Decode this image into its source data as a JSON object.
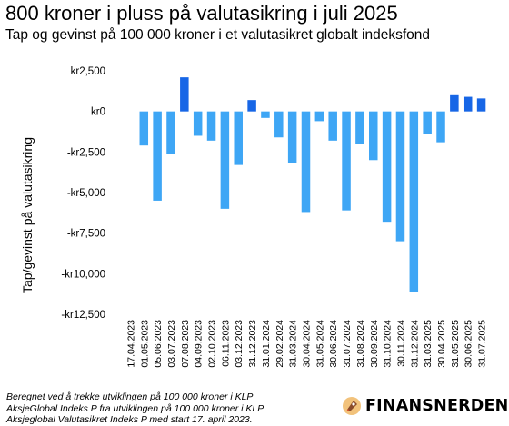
{
  "header": {
    "title": "800 kroner i pluss på valutasikring i juli 2025",
    "subtitle": "Tap og gevinst på 100 000 kroner i et valutasikret globalt indeksfond"
  },
  "footer": {
    "notes": [
      "Beregnet ved å trekke utviklingen på 100 000 kroner i KLP",
      "AksjeGlobal Indeks P fra utviklingen på 100 000 kroner i KLP",
      "Aksjeglobal Valutasikret Indeks P med start 17. april 2023."
    ],
    "brand": "FINANSNERDEN",
    "brand_icon": "rocket-logo-icon"
  },
  "colors": {
    "negative": "#3ea6f5",
    "positive": "#1766e6"
  },
  "chart_data": {
    "type": "bar",
    "title": "800 kroner i pluss på valutasikring i juli 2025",
    "subtitle": "Tap og gevinst på 100 000 kroner i et valutasikret globalt indeksfond",
    "xlabel": "",
    "ylabel": "Tap/gevinst på valutasikring",
    "ylim": [
      -12500,
      2500
    ],
    "yticks": [
      2500,
      0,
      -2500,
      -5000,
      -7500,
      -10000,
      -12500
    ],
    "ytick_labels": [
      "kr2,500",
      "kr0",
      "-kr2,500",
      "-kr5,000",
      "-kr7,500",
      "-kr10,000",
      "-kr12,500"
    ],
    "grid": false,
    "legend": "none",
    "categories": [
      "17.04.2023",
      "01.05.2023",
      "05.06.2023",
      "03.07.2023",
      "07.08.2023",
      "04.09.2023",
      "02.10.2023",
      "06.11.2023",
      "03.12.2023",
      "31.12.2023",
      "31.01.2024",
      "29.02.2024",
      "31.03.2024",
      "30.04.2024",
      "31.05.2024",
      "30.06.2024",
      "31.07.2024",
      "31.08.2024",
      "30.09.2024",
      "31.10.2024",
      "30.11.2024",
      "31.12.2024",
      "31.03.2025",
      "30.04.2025",
      "31.05.2025",
      "30.06.2025",
      "31.07.2025"
    ],
    "values": [
      0,
      -2100,
      -5500,
      -2600,
      2100,
      -1500,
      -1800,
      -6000,
      -3300,
      700,
      -400,
      -1600,
      -3200,
      -6200,
      -600,
      -1800,
      -6100,
      -2000,
      -3000,
      -6800,
      -8000,
      -11100,
      -1400,
      -1900,
      1000,
      900,
      800
    ]
  }
}
